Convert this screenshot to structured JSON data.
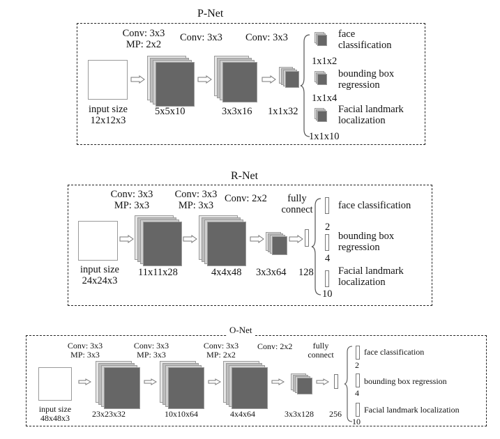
{
  "colors": {
    "layer_front": "#666666",
    "layer_mid": "#bdbdbd",
    "layer_back": "#e6e6e6",
    "border": "#222222"
  },
  "pnet": {
    "title": "P-Net",
    "conv1_a": "Conv: 3x3",
    "conv1_b": "MP: 2x2",
    "conv2": "Conv: 3x3",
    "conv3": "Conv: 3x3",
    "input_a": "input size",
    "input_b": "12x12x3",
    "dim1": "5x5x10",
    "dim2": "3x3x16",
    "dim3": "1x1x32",
    "out1_a": "face",
    "out1_b": "classification",
    "out1_dim": "1x1x2",
    "out2_a": "bounding box",
    "out2_b": "regression",
    "out2_dim": "1x1x4",
    "out3_a": "Facial landmark",
    "out3_b": "localization",
    "out3_dim": "1x1x10"
  },
  "rnet": {
    "title": "R-Net",
    "conv1_a": "Conv: 3x3",
    "conv1_b": "MP: 3x3",
    "conv2_a": "Conv: 3x3",
    "conv2_b": "MP: 3x3",
    "conv3": "Conv: 2x2",
    "fc_a": "fully",
    "fc_b": "connect",
    "input_a": "input size",
    "input_b": "24x24x3",
    "dim1": "11x11x28",
    "dim2": "4x4x48",
    "dim3": "3x3x64",
    "fc_dim": "128",
    "out1": "face classification",
    "out1_dim": "2",
    "out2_a": "bounding box",
    "out2_b": "regression",
    "out2_dim": "4",
    "out3_a": "Facial landmark",
    "out3_b": "localization",
    "out3_dim": "10"
  },
  "onet": {
    "title": "O-Net",
    "conv1_a": "Conv: 3x3",
    "conv1_b": "MP: 3x3",
    "conv2_a": "Conv: 3x3",
    "conv2_b": "MP: 3x3",
    "conv3_a": "Conv: 3x3",
    "conv3_b": "MP: 2x2",
    "conv4": "Conv: 2x2",
    "fc_a": "fully",
    "fc_b": "connect",
    "input_a": "input size",
    "input_b": "48x48x3",
    "dim1": "23x23x32",
    "dim2": "10x10x64",
    "dim3": "4x4x64",
    "dim4": "3x3x128",
    "fc_dim": "256",
    "out1": "face classification",
    "out1_dim": "2",
    "out2": "bounding box regression",
    "out2_dim": "4",
    "out3": "Facial landmark localization",
    "out3_dim": "10"
  }
}
